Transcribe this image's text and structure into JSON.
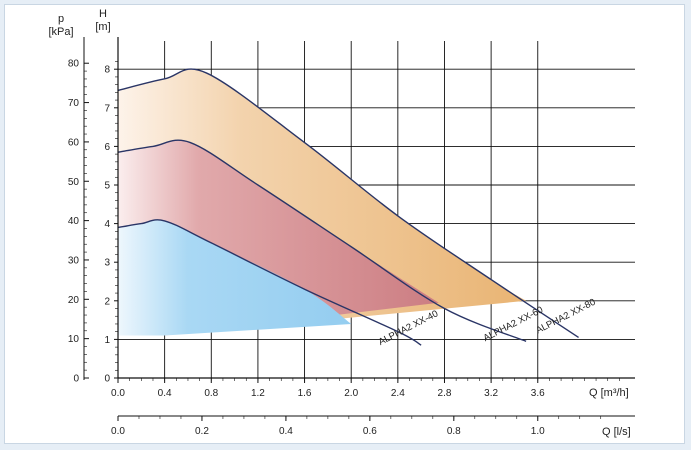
{
  "chart_data": {
    "type": "area",
    "title": "",
    "left_axis_outer": {
      "symbol": "p",
      "unit": "[kPa]",
      "ticks": [
        0,
        10,
        20,
        30,
        40,
        50,
        60,
        70,
        80
      ]
    },
    "left_axis_inner": {
      "symbol": "H",
      "unit": "[m]",
      "ticks": [
        0,
        1,
        2,
        3,
        4,
        5,
        6,
        7,
        8
      ]
    },
    "x_axis_primary": {
      "label": "Q [m³/h]",
      "ticks": [
        "0.0",
        "0.4",
        "0.8",
        "1.2",
        "1.6",
        "2.0",
        "2.4",
        "2.8",
        "3.2",
        "3.6"
      ]
    },
    "x_axis_secondary": {
      "label": "Q [l/s]",
      "ticks": [
        "0.0",
        "0.2",
        "0.4",
        "0.6",
        "0.8",
        "1.0"
      ]
    },
    "xlim": [
      0,
      4.4
    ],
    "ylim": [
      0,
      8.6
    ],
    "grid": true,
    "series": [
      {
        "name": "ALPHA2 XX-80",
        "color": "#ecb877",
        "max_curve": [
          [
            0,
            7.45
          ],
          [
            0.4,
            7.75
          ],
          [
            0.76,
            7.9
          ],
          [
            1.6,
            6.1
          ],
          [
            2.4,
            4.2
          ],
          [
            3.2,
            2.55
          ],
          [
            3.95,
            1.05
          ]
        ],
        "min_curve": [
          [
            0.4,
            1.1
          ],
          [
            3.5,
            2.0
          ]
        ],
        "label_at": [
          3.6,
          1.15
        ]
      },
      {
        "name": "ALPHA2 XX-60",
        "color": "#d4868b",
        "max_curve": [
          [
            0,
            5.85
          ],
          [
            0.3,
            6.0
          ],
          [
            0.62,
            6.1
          ],
          [
            1.2,
            5.0
          ],
          [
            2.0,
            3.4
          ],
          [
            2.8,
            1.8
          ],
          [
            3.5,
            0.95
          ]
        ],
        "min_curve": [
          [
            0.4,
            1.1
          ],
          [
            2.75,
            1.95
          ]
        ],
        "label_at": [
          3.15,
          0.95
        ]
      },
      {
        "name": "ALPHA2 XX-40",
        "color": "#9fd2f2",
        "max_curve": [
          [
            0,
            3.9
          ],
          [
            0.2,
            4.0
          ],
          [
            0.4,
            4.07
          ],
          [
            0.8,
            3.5
          ],
          [
            1.6,
            2.3
          ],
          [
            2.4,
            1.2
          ],
          [
            2.6,
            0.85
          ]
        ],
        "min_curve": [
          [
            0.4,
            1.1
          ],
          [
            2.0,
            1.4
          ]
        ],
        "label_at": [
          2.25,
          0.85
        ]
      }
    ]
  }
}
